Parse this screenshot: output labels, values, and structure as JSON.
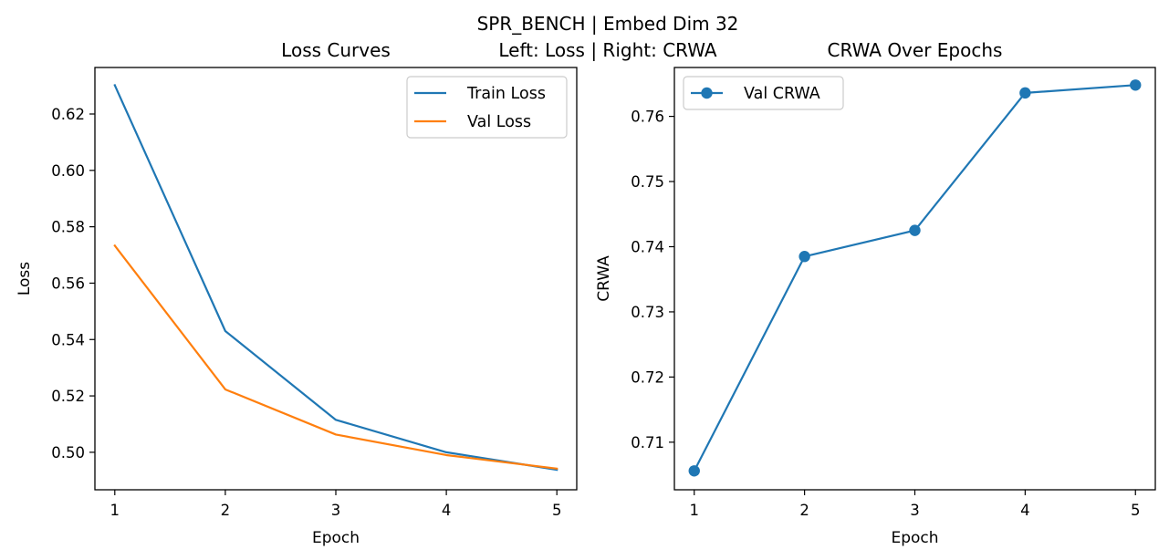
{
  "figure": {
    "suptitle_line1": "SPR_BENCH | Embed Dim 32",
    "suptitle_line2": "Left: Loss | Right: CRWA"
  },
  "chart_data": [
    {
      "type": "line",
      "title": "Loss Curves",
      "xlabel": "Epoch",
      "ylabel": "Loss",
      "x": [
        1,
        2,
        3,
        4,
        5
      ],
      "xlim": [
        0.82,
        5.18
      ],
      "ylim": [
        0.4867,
        0.6365
      ],
      "xticks": [
        "1",
        "2",
        "3",
        "4",
        "5"
      ],
      "yticks": [
        "0.50",
        "0.52",
        "0.54",
        "0.56",
        "0.58",
        "0.60",
        "0.62"
      ],
      "grid": false,
      "legend_position": "upper right",
      "series": [
        {
          "name": "Train Loss",
          "color": "#1f77b4",
          "values": [
            0.6302,
            0.543,
            0.5115,
            0.5,
            0.4938
          ]
        },
        {
          "name": "Val Loss",
          "color": "#ff7f0e",
          "values": [
            0.5733,
            0.5223,
            0.5063,
            0.499,
            0.4942
          ]
        }
      ]
    },
    {
      "type": "line",
      "title": "CRWA Over Epochs",
      "xlabel": "Epoch",
      "ylabel": "CRWA",
      "x": [
        1,
        2,
        3,
        4,
        5
      ],
      "xlim": [
        0.82,
        5.18
      ],
      "ylim": [
        0.7027,
        0.7675
      ],
      "xticks": [
        "1",
        "2",
        "3",
        "4",
        "5"
      ],
      "yticks": [
        "0.71",
        "0.72",
        "0.73",
        "0.74",
        "0.75",
        "0.76"
      ],
      "grid": false,
      "legend_position": "upper left",
      "series": [
        {
          "name": "Val CRWA",
          "color": "#1f77b4",
          "marker": "circle",
          "values": [
            0.7056,
            0.7385,
            0.7425,
            0.7636,
            0.7648
          ]
        }
      ]
    }
  ]
}
